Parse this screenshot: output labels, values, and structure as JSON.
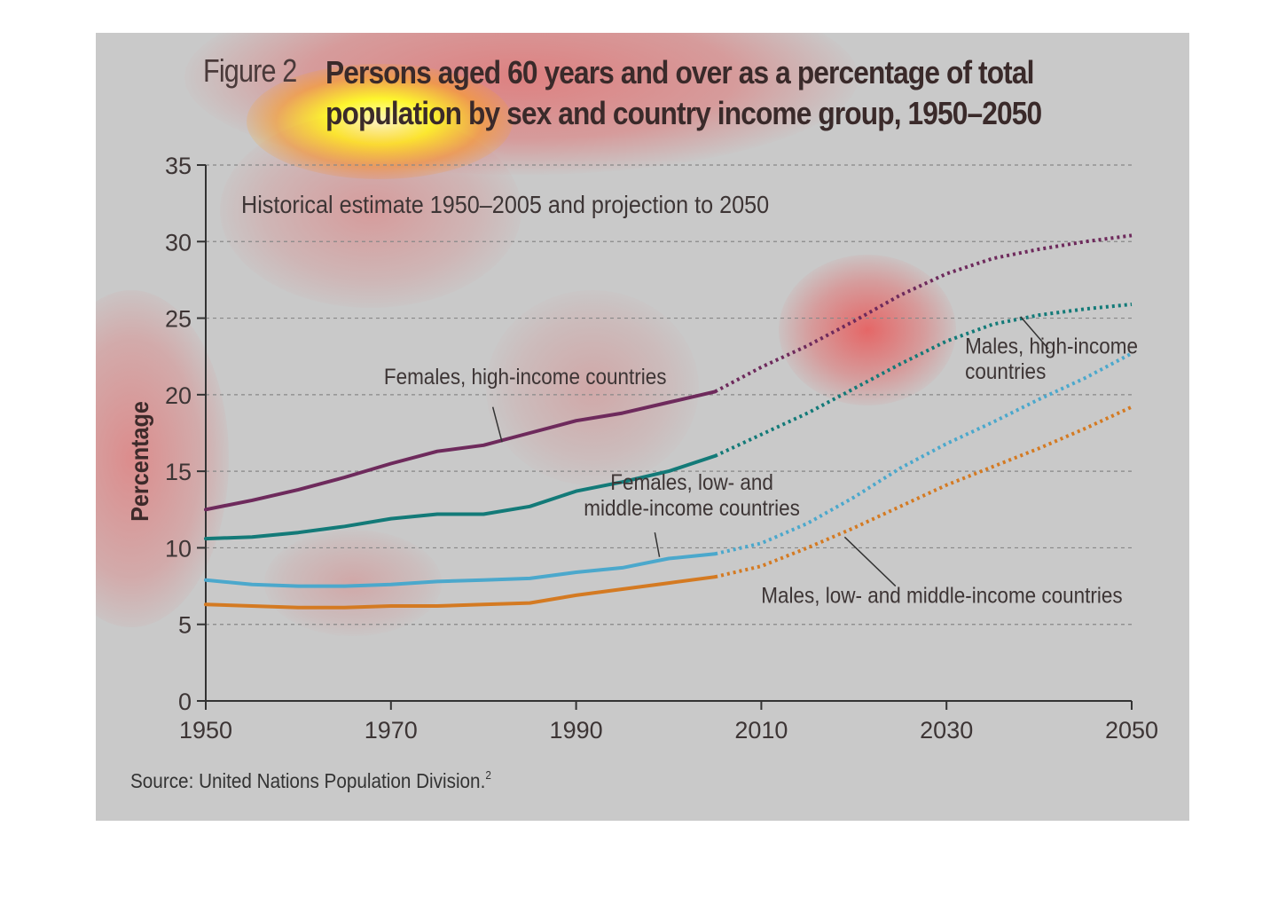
{
  "figure": {
    "label": "Figure 2",
    "title_lines": [
      "Persons aged 60 years and over as a percentage of total",
      "population by sex and country income group, 1950–2050"
    ],
    "subtitle": "Historical estimate 1950–2005 and projection to 2050",
    "source": "Source: United Nations Population Division.",
    "source_ref": "2"
  },
  "colors": {
    "panel_bg": "#c9c9c9",
    "axis": "#333333",
    "grid": "#888888",
    "text": "#3d3535"
  },
  "chart_data": {
    "type": "line",
    "title": "Persons aged 60 years and over as a percentage of total population by sex and country income group, 1950–2050",
    "subtitle": "Historical estimate 1950–2005 and projection to 2050",
    "xlabel": "",
    "ylabel": "Percentage",
    "xlim": [
      1950,
      2050
    ],
    "ylim": [
      0,
      35
    ],
    "xticks": [
      1950,
      1970,
      1990,
      2010,
      2030,
      2050
    ],
    "yticks": [
      0,
      5,
      10,
      15,
      20,
      25,
      30,
      35
    ],
    "grid": "horizontal-dashed",
    "projection_start": 2005,
    "series": [
      {
        "name": "Females, high-income countries",
        "color": "#6e2a5c",
        "historical": [
          [
            1950,
            12.5
          ],
          [
            1955,
            13.1
          ],
          [
            1960,
            13.8
          ],
          [
            1965,
            14.6
          ],
          [
            1970,
            15.5
          ],
          [
            1975,
            16.3
          ],
          [
            1980,
            16.7
          ],
          [
            1985,
            17.5
          ],
          [
            1990,
            18.3
          ],
          [
            1995,
            18.8
          ],
          [
            2000,
            19.5
          ],
          [
            2005,
            20.2
          ]
        ],
        "projection": [
          [
            2005,
            20.2
          ],
          [
            2010,
            21.8
          ],
          [
            2015,
            23.2
          ],
          [
            2020,
            24.8
          ],
          [
            2025,
            26.5
          ],
          [
            2030,
            27.9
          ],
          [
            2035,
            28.9
          ],
          [
            2040,
            29.5
          ],
          [
            2045,
            30.0
          ],
          [
            2050,
            30.4
          ]
        ]
      },
      {
        "name": "Males, high-income countries",
        "color": "#137a78",
        "historical": [
          [
            1950,
            10.6
          ],
          [
            1955,
            10.7
          ],
          [
            1960,
            11.0
          ],
          [
            1965,
            11.4
          ],
          [
            1970,
            11.9
          ],
          [
            1975,
            12.2
          ],
          [
            1980,
            12.2
          ],
          [
            1985,
            12.7
          ],
          [
            1990,
            13.7
          ],
          [
            1995,
            14.3
          ],
          [
            2000,
            15.0
          ],
          [
            2005,
            16.0
          ]
        ],
        "projection": [
          [
            2005,
            16.0
          ],
          [
            2010,
            17.4
          ],
          [
            2015,
            18.8
          ],
          [
            2020,
            20.4
          ],
          [
            2025,
            22.0
          ],
          [
            2030,
            23.5
          ],
          [
            2035,
            24.6
          ],
          [
            2040,
            25.2
          ],
          [
            2045,
            25.6
          ],
          [
            2050,
            25.9
          ]
        ]
      },
      {
        "name": "Females, low- and middle-income countries",
        "color": "#4ba8cc",
        "historical": [
          [
            1950,
            7.9
          ],
          [
            1955,
            7.6
          ],
          [
            1960,
            7.5
          ],
          [
            1965,
            7.5
          ],
          [
            1970,
            7.6
          ],
          [
            1975,
            7.8
          ],
          [
            1980,
            7.9
          ],
          [
            1985,
            8.0
          ],
          [
            1990,
            8.4
          ],
          [
            1995,
            8.7
          ],
          [
            2000,
            9.3
          ],
          [
            2005,
            9.6
          ]
        ],
        "projection": [
          [
            2005,
            9.6
          ],
          [
            2010,
            10.3
          ],
          [
            2015,
            11.6
          ],
          [
            2020,
            13.3
          ],
          [
            2025,
            15.2
          ],
          [
            2030,
            16.8
          ],
          [
            2035,
            18.2
          ],
          [
            2040,
            19.7
          ],
          [
            2045,
            21.1
          ],
          [
            2050,
            22.7
          ]
        ]
      },
      {
        "name": "Males, low- and middle-income countries",
        "color": "#d47a22",
        "historical": [
          [
            1950,
            6.3
          ],
          [
            1955,
            6.2
          ],
          [
            1960,
            6.1
          ],
          [
            1965,
            6.1
          ],
          [
            1970,
            6.2
          ],
          [
            1975,
            6.2
          ],
          [
            1980,
            6.3
          ],
          [
            1985,
            6.4
          ],
          [
            1990,
            6.9
          ],
          [
            1995,
            7.3
          ],
          [
            2000,
            7.7
          ],
          [
            2005,
            8.1
          ]
        ],
        "projection": [
          [
            2005,
            8.1
          ],
          [
            2010,
            8.8
          ],
          [
            2015,
            10.0
          ],
          [
            2020,
            11.3
          ],
          [
            2025,
            12.7
          ],
          [
            2030,
            14.1
          ],
          [
            2035,
            15.3
          ],
          [
            2040,
            16.5
          ],
          [
            2045,
            17.8
          ],
          [
            2050,
            19.2
          ]
        ]
      }
    ],
    "annotations": [
      {
        "lines": [
          "Females, high-income countries"
        ],
        "points_to": "Females, high-income countries",
        "at": [
          1982,
          16.9
        ],
        "text_at": [
          1984.5,
          20.7
        ],
        "leader_from": [
          1981,
          19.2
        ]
      },
      {
        "lines": [
          "Males, high-income",
          "countries"
        ],
        "points_to": "Males, high-income countries",
        "at": [
          2038,
          25.1
        ],
        "text_at": [
          2032,
          22.7
        ],
        "leader_from": [
          2041,
          23.0
        ]
      },
      {
        "lines": [
          "Females, low- and",
          "middle-income countries"
        ],
        "points_to": "Females, low- and middle-income countries",
        "at": [
          1999,
          9.4
        ],
        "text_at": [
          2002.5,
          13.8
        ],
        "leader_from": [
          1998.5,
          11.0
        ]
      },
      {
        "lines": [
          "Males, low- and middle-income countries"
        ],
        "points_to": "Males, low- and middle-income countries",
        "at": [
          2019,
          10.7
        ],
        "text_at": [
          2029.5,
          6.4
        ],
        "leader_from": [
          2024.5,
          7.5
        ]
      }
    ]
  }
}
